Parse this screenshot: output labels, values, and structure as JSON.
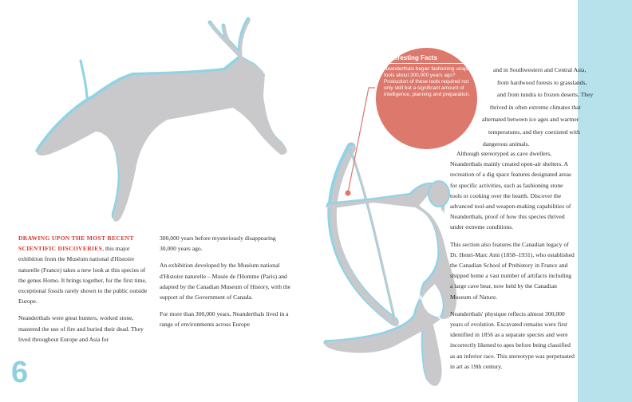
{
  "colors": {
    "accent_red": "#d23a2e",
    "facts_circle": "#dc786c",
    "side_band": "#b7e2ec",
    "figure_fill": "#c9c9cb",
    "figure_outline": "#8fd3e6",
    "page_number": "#8fd0e0"
  },
  "illustrations": {
    "deer": "cave-painting-deer",
    "archer": "cave-painting-archer"
  },
  "col1": {
    "lead": "DRAWING UPON THE MOST RECENT SCIENTIFIC DISCOVERIES",
    "p1_rest": ", this major exhibition from the Muséum national d'Histoire naturelle (France) takes a new look at this species of the genus Homo. It brings together, for the first time, exceptional fossils rarely shown to the public outside Europe.",
    "p2": "Neanderthals were great hunters, worked stone, mastered the use of fire and buried their dead. They lived throughout Europe and Asia for"
  },
  "col2": {
    "p1": "300,000 years before mysteriously disappearing 30,000 years ago.",
    "p2": "An exhibition developed by the Muséum national d'Histoire naturelle – Musée de l'Homme (Paris) and adapted by the Canadian Museum of History, with the support of the Government of Canada.",
    "p3": "For more than 300,000 years, Neanderthals lived in a range of environments across Europe"
  },
  "col3_wrap": {
    "l1": "and in Southwestern and Central Asia,",
    "l2": "from hardwood forests to grasslands,",
    "l3": "and from tundra to frozen deserts. They",
    "l4": "thrived in often extreme climates that",
    "l5": "alternated between ice ages and warmer",
    "l6": "temperatures, and they coexisted with",
    "l7": "dangerous animals."
  },
  "col3": {
    "p1": "Although stereotyped as cave dwellers, Neanderthals mainly created open-air shelters. A recreation of a dig space features designated areas for specific activities, such as fashioning stone tools or cooking over the hearth. Discover the advanced tool-and weapon-making capabilities of Neanderthals, proof of how this species thrived under extreme conditions.",
    "p2": "This section also features the Canadian legacy of Dr. Henri-Marc Ami (1858–1931), who established the Canadian School of Prehistory in France and shipped home a vast number of artifacts including a large cave bear, now held by the Canadian Museum of Nature.",
    "p3": "Neanderthals' physique reflects almost 300,000 years of evolution. Excavated remains were first identified in 1856 as a separate species and were incorrectly likened to apes before being classified as an inferior race. This stereotype was perpetuated in art as 19th century."
  },
  "facts": {
    "title": "Interesting Facts",
    "body": "Neanderthals began fashioning unique tools about 300,000 years ago? Production of these tools required not only skill but a significant amount of intelligence, planning and preparation."
  },
  "page_number": "6"
}
